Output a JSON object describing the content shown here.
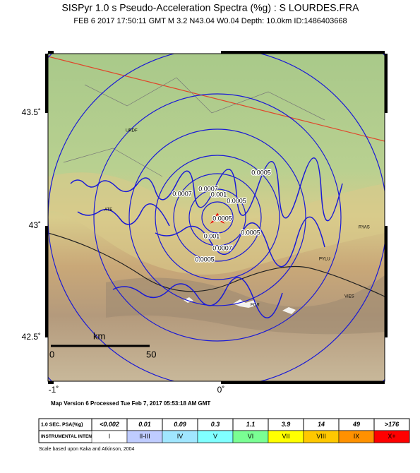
{
  "header": {
    "title": "SISPyr 1.0 s Pseudo-Acceleration Spectra (%g) : S LOURDES.FRA",
    "subtitle": "FEB 6 2017 17:50:11  GMT   M 3.2   N43.04 W0.04   Depth: 10.0km   ID:1486403668"
  },
  "map": {
    "lat_labels": [
      "43.5˚",
      "43˚",
      "42.5˚"
    ],
    "lon_labels": [
      "-1˚",
      "0˚"
    ],
    "scale": {
      "unit": "km",
      "start": "0",
      "end": "50"
    },
    "places": [
      "URDF",
      "ATE",
      "PYLU",
      "FOR",
      "VIES",
      "RYAS"
    ],
    "contour_labels": [
      "0.0005",
      "0.0007",
      "0.001",
      "0.0005",
      "0.0007",
      "0.0005",
      "0.001",
      "0.0005",
      "0.0007",
      "0.0005"
    ]
  },
  "footer": {
    "version": "Map Version 6 Processed Tue Feb  7, 2017 05:53:18 AM GMT",
    "credit": "Scale based upon Kaka and Atkinson, 2004"
  },
  "legend": {
    "row1_title": "1.0 SEC. PSA(%g)",
    "row2_title": "INSTRUMENTAL INTENSITY",
    "psa": [
      "<0.002",
      "0.01",
      "0.09",
      "0.3",
      "1.1",
      "3.9",
      "14",
      "49",
      ">176"
    ],
    "intensity": [
      "I",
      "II-III",
      "IV",
      "V",
      "VI",
      "VII",
      "VIII",
      "IX",
      "X+"
    ],
    "colors": [
      "#ffffff",
      "#bfccff",
      "#a0e6ff",
      "#80ffff",
      "#7aff93",
      "#ffff00",
      "#ffc800",
      "#ff9100",
      "#ff0000"
    ]
  }
}
